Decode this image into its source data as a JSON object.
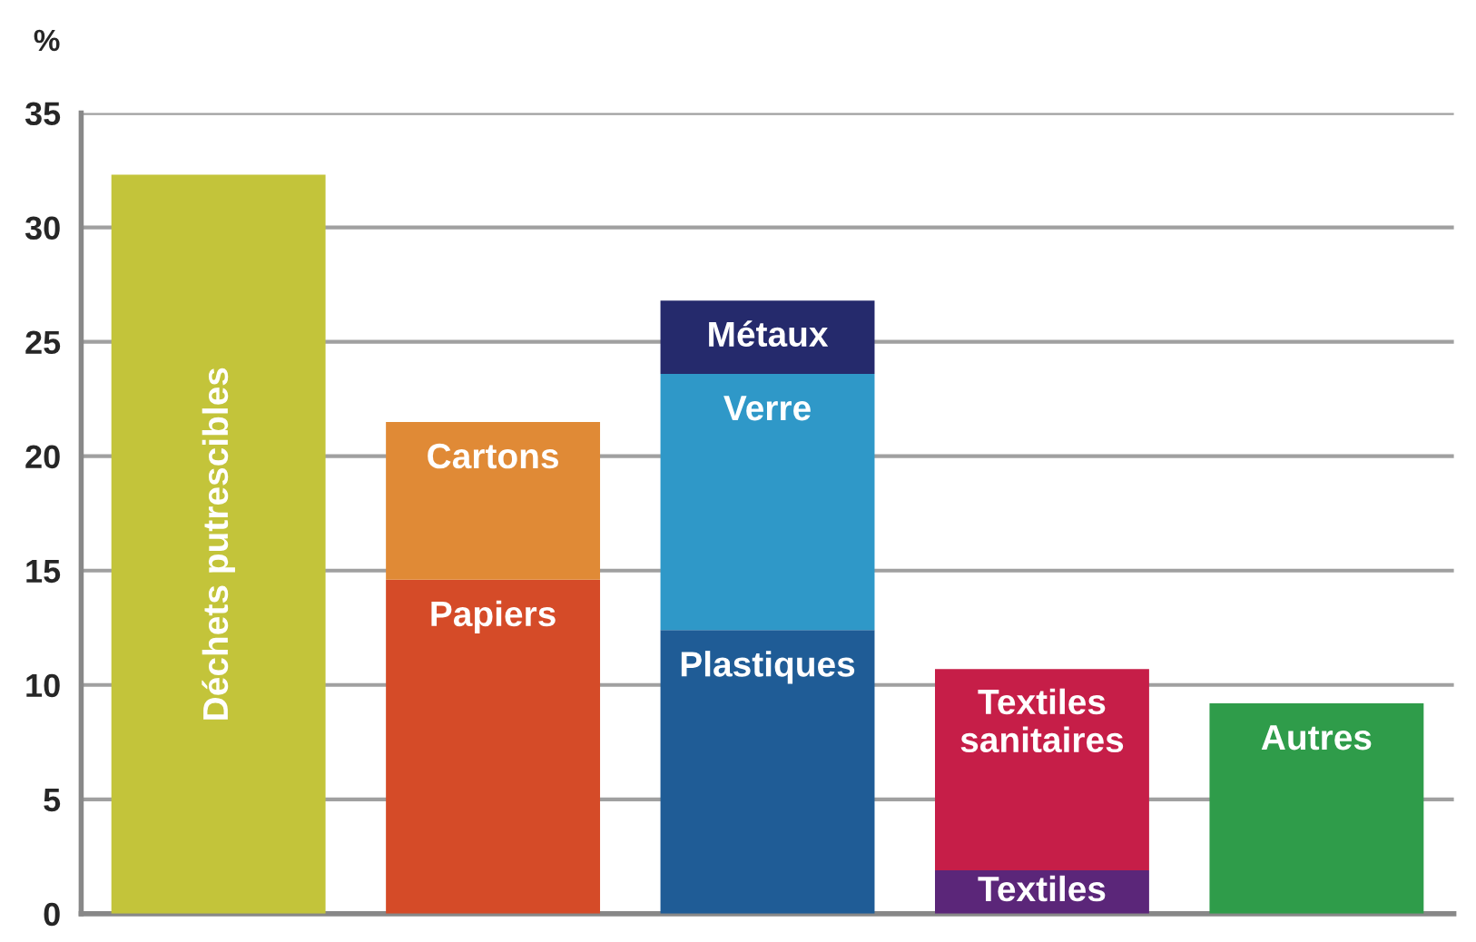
{
  "chart_data": {
    "type": "bar",
    "stacked": true,
    "categories": [
      null,
      null,
      null,
      null,
      null
    ],
    "ylabel": "%",
    "ylim": [
      0,
      35
    ],
    "yticks": [
      0,
      5,
      10,
      15,
      20,
      25,
      30,
      35
    ],
    "grid": "y",
    "legend": false,
    "series": [
      {
        "name": "Déchets putrescibles",
        "color": "#c3c43a",
        "values": [
          32.3,
          null,
          null,
          null,
          null
        ]
      },
      {
        "name": "Papiers",
        "color": "#d54b28",
        "values": [
          null,
          14.6,
          null,
          null,
          null
        ]
      },
      {
        "name": "Cartons",
        "color": "#e08a36",
        "values": [
          null,
          6.9,
          null,
          null,
          null
        ]
      },
      {
        "name": "Plastiques",
        "color": "#1f5c96",
        "values": [
          null,
          null,
          12.4,
          null,
          null
        ]
      },
      {
        "name": "Verre",
        "color": "#2f98c8",
        "values": [
          null,
          null,
          11.2,
          null,
          null
        ]
      },
      {
        "name": "Métaux",
        "color": "#252a6c",
        "values": [
          null,
          null,
          3.2,
          null,
          null
        ]
      },
      {
        "name": "Textiles",
        "color": "#5b2679",
        "values": [
          null,
          null,
          null,
          1.9,
          null
        ]
      },
      {
        "name": "Textiles sanitaires",
        "color": "#c61e48",
        "values": [
          null,
          null,
          null,
          8.8,
          null
        ]
      },
      {
        "name": "Autres",
        "color": "#2f9c4a",
        "values": [
          null,
          null,
          null,
          null,
          9.2
        ]
      }
    ]
  }
}
